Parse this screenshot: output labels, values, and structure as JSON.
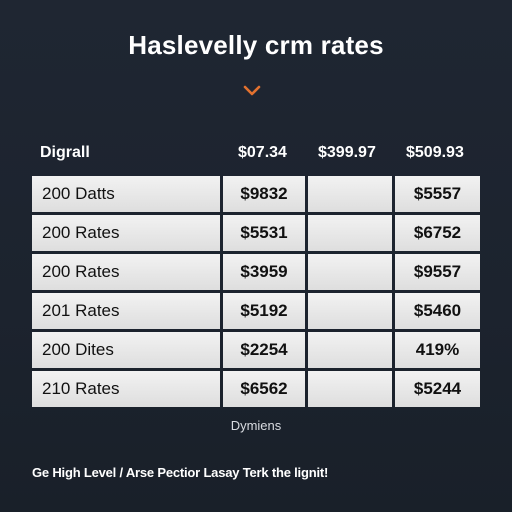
{
  "title": "Haslevelly crm rates",
  "chevron_icon": "chevron-down-icon",
  "accent_color": "#e2712f",
  "header": {
    "label": "Digrall",
    "col1": "$07.34",
    "col2": "$399.97",
    "col3": "$509.93"
  },
  "rows": [
    {
      "label": "200 Datts",
      "v1": "$9832",
      "v2": "",
      "v3": "$5557"
    },
    {
      "label": "200 Rates",
      "v1": "$5531",
      "v2": "",
      "v3": "$6752"
    },
    {
      "label": "200 Rates",
      "v1": "$3959",
      "v2": "",
      "v3": "$9557"
    },
    {
      "label": "201 Rates",
      "v1": "$5192",
      "v2": "",
      "v3": "$5460"
    },
    {
      "label": "200 Dites",
      "v1": "$2254",
      "v2": "",
      "v3": "419%"
    },
    {
      "label": "210 Rates",
      "v1": "$6562",
      "v2": "",
      "v3": "$5244"
    }
  ],
  "footnote": "Dymiens",
  "tagline": "Ge High Level / Arse Pectior Lasay Terk the lignit!"
}
